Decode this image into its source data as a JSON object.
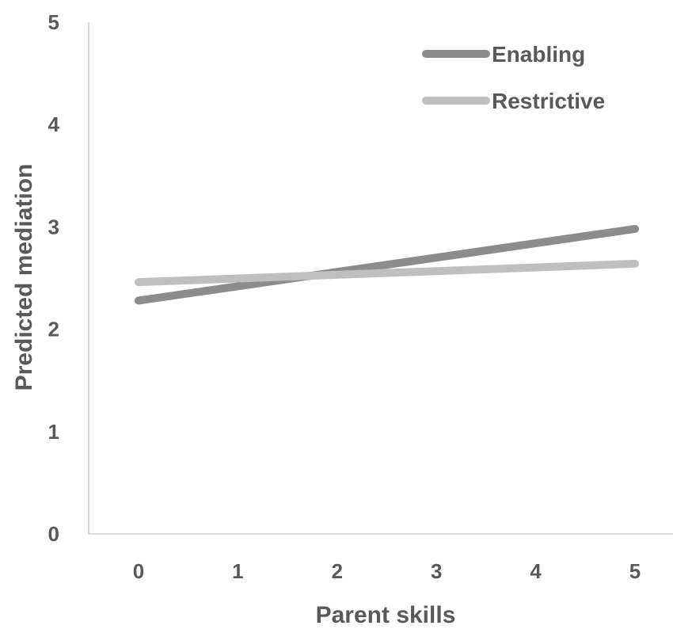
{
  "chart_data": {
    "type": "line",
    "title": "",
    "xlabel": "Parent skills",
    "ylabel": "Predicted mediation",
    "x": [
      0,
      5
    ],
    "x_ticks": [
      "0",
      "1",
      "2",
      "3",
      "4",
      "5"
    ],
    "y_ticks": [
      "0",
      "1",
      "2",
      "3",
      "4",
      "5"
    ],
    "xlim": [
      0,
      5
    ],
    "ylim": [
      0,
      5
    ],
    "grid": false,
    "legend_position": "top-right",
    "series": [
      {
        "name": "Enabling",
        "values": [
          2.28,
          2.98
        ],
        "color": "#8c8c8c"
      },
      {
        "name": "Restrictive",
        "values": [
          2.46,
          2.64
        ],
        "color": "#bfbfbf"
      }
    ]
  }
}
